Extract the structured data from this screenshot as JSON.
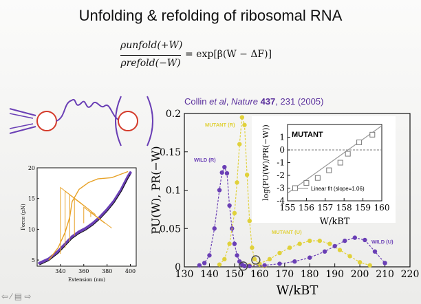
{
  "slide": {
    "title": "Unfolding & refolding of ribosomal RNA",
    "equation": {
      "numerator": "ρunfold(+W)",
      "denominator": "ρrefold(−W)",
      "rhs": "= exp[β(W − ΔF)]"
    },
    "citation": {
      "authors_pre": "Collin ",
      "authors_em": "et al",
      "journal": "Nature",
      "volume": "437",
      "pages_year": ", 231 (2005)"
    }
  },
  "toolbar": {
    "icons": "⇦ ⁄ ▤ ⇨"
  },
  "colors": {
    "purple": "#6a3fb5",
    "yellow": "#e0d13a",
    "orange": "#e8a227",
    "black": "#111111"
  },
  "chart_data": [
    {
      "type": "line",
      "xlabel": "W/kBT",
      "ylabel": "PU(W), PR(−W)",
      "xlim": [
        130,
        220
      ],
      "ylim": [
        0,
        0.2
      ],
      "xticks": [
        "130",
        "140",
        "150",
        "160",
        "170",
        "180",
        "190",
        "200",
        "210",
        "220"
      ],
      "yticks": [
        "0",
        "0.05",
        "0.1",
        "0.15",
        "0.2"
      ],
      "series": [
        {
          "name": "WILD (R)",
          "color": "#6a3fb5",
          "x": [
            136,
            138,
            140,
            142,
            144,
            145,
            146,
            147,
            148,
            149,
            150,
            151,
            152,
            153,
            154
          ],
          "y": [
            0.002,
            0.005,
            0.015,
            0.05,
            0.1,
            0.123,
            0.13,
            0.122,
            0.08,
            0.05,
            0.03,
            0.015,
            0.007,
            0.003,
            0.001
          ]
        },
        {
          "name": "MUTANT (R)",
          "color": "#e0d13a",
          "x": [
            144,
            146,
            148,
            150,
            151,
            152,
            153,
            154,
            155,
            156,
            157,
            158,
            160,
            162
          ],
          "y": [
            0.003,
            0.01,
            0.03,
            0.07,
            0.11,
            0.16,
            0.195,
            0.185,
            0.12,
            0.06,
            0.025,
            0.01,
            0.003,
            0.001
          ]
        },
        {
          "name": "MUTANT (U)",
          "color": "#e0d13a",
          "x": [
            156,
            160,
            164,
            168,
            172,
            176,
            180,
            184,
            188,
            192,
            196,
            200,
            204
          ],
          "y": [
            0.002,
            0.004,
            0.01,
            0.018,
            0.025,
            0.03,
            0.034,
            0.034,
            0.03,
            0.022,
            0.014,
            0.006,
            0.002
          ]
        },
        {
          "name": "WILD (U)",
          "color": "#6a3fb5",
          "x": [
            156,
            162,
            168,
            174,
            180,
            186,
            190,
            194,
            198,
            202,
            206,
            210
          ],
          "y": [
            0.001,
            0.002,
            0.004,
            0.007,
            0.012,
            0.02,
            0.027,
            0.034,
            0.038,
            0.035,
            0.02,
            0.005
          ]
        }
      ],
      "annotations": [
        "MUTANT (R)",
        "WILD (R)",
        "MUTANT (U)",
        "WILD (U)"
      ]
    },
    {
      "type": "scatter",
      "title": "MUTANT",
      "xlabel": "W/kBT",
      "ylabel": "log(PU(W)/PR(−W))",
      "xlim": [
        155,
        160
      ],
      "ylim": [
        -4,
        2
      ],
      "xticks": [
        "155",
        "156",
        "157",
        "158",
        "159",
        "160"
      ],
      "yticks": [
        "-4",
        "-3",
        "-2",
        "-1",
        "0",
        "1"
      ],
      "x": [
        155.4,
        156.0,
        156.6,
        157.2,
        157.8,
        158.2,
        158.8,
        159.5
      ],
      "y": [
        -3.0,
        -2.6,
        -2.2,
        -1.6,
        -1.0,
        -0.3,
        0.6,
        1.2
      ],
      "fit": {
        "label": "Linear fit (slope=1.06)",
        "slope": 1.06,
        "x": [
          155,
          160
        ],
        "y": [
          -3.4,
          1.9
        ]
      }
    },
    {
      "type": "line",
      "xlabel": "Extension (nm)",
      "ylabel": "Force (pN)",
      "xlim": [
        320,
        405
      ],
      "ylim": [
        4,
        20
      ],
      "xticks": [
        "340",
        "360",
        "380",
        "400"
      ],
      "yticks": [
        "5",
        "10",
        "15",
        "20"
      ]
    }
  ]
}
